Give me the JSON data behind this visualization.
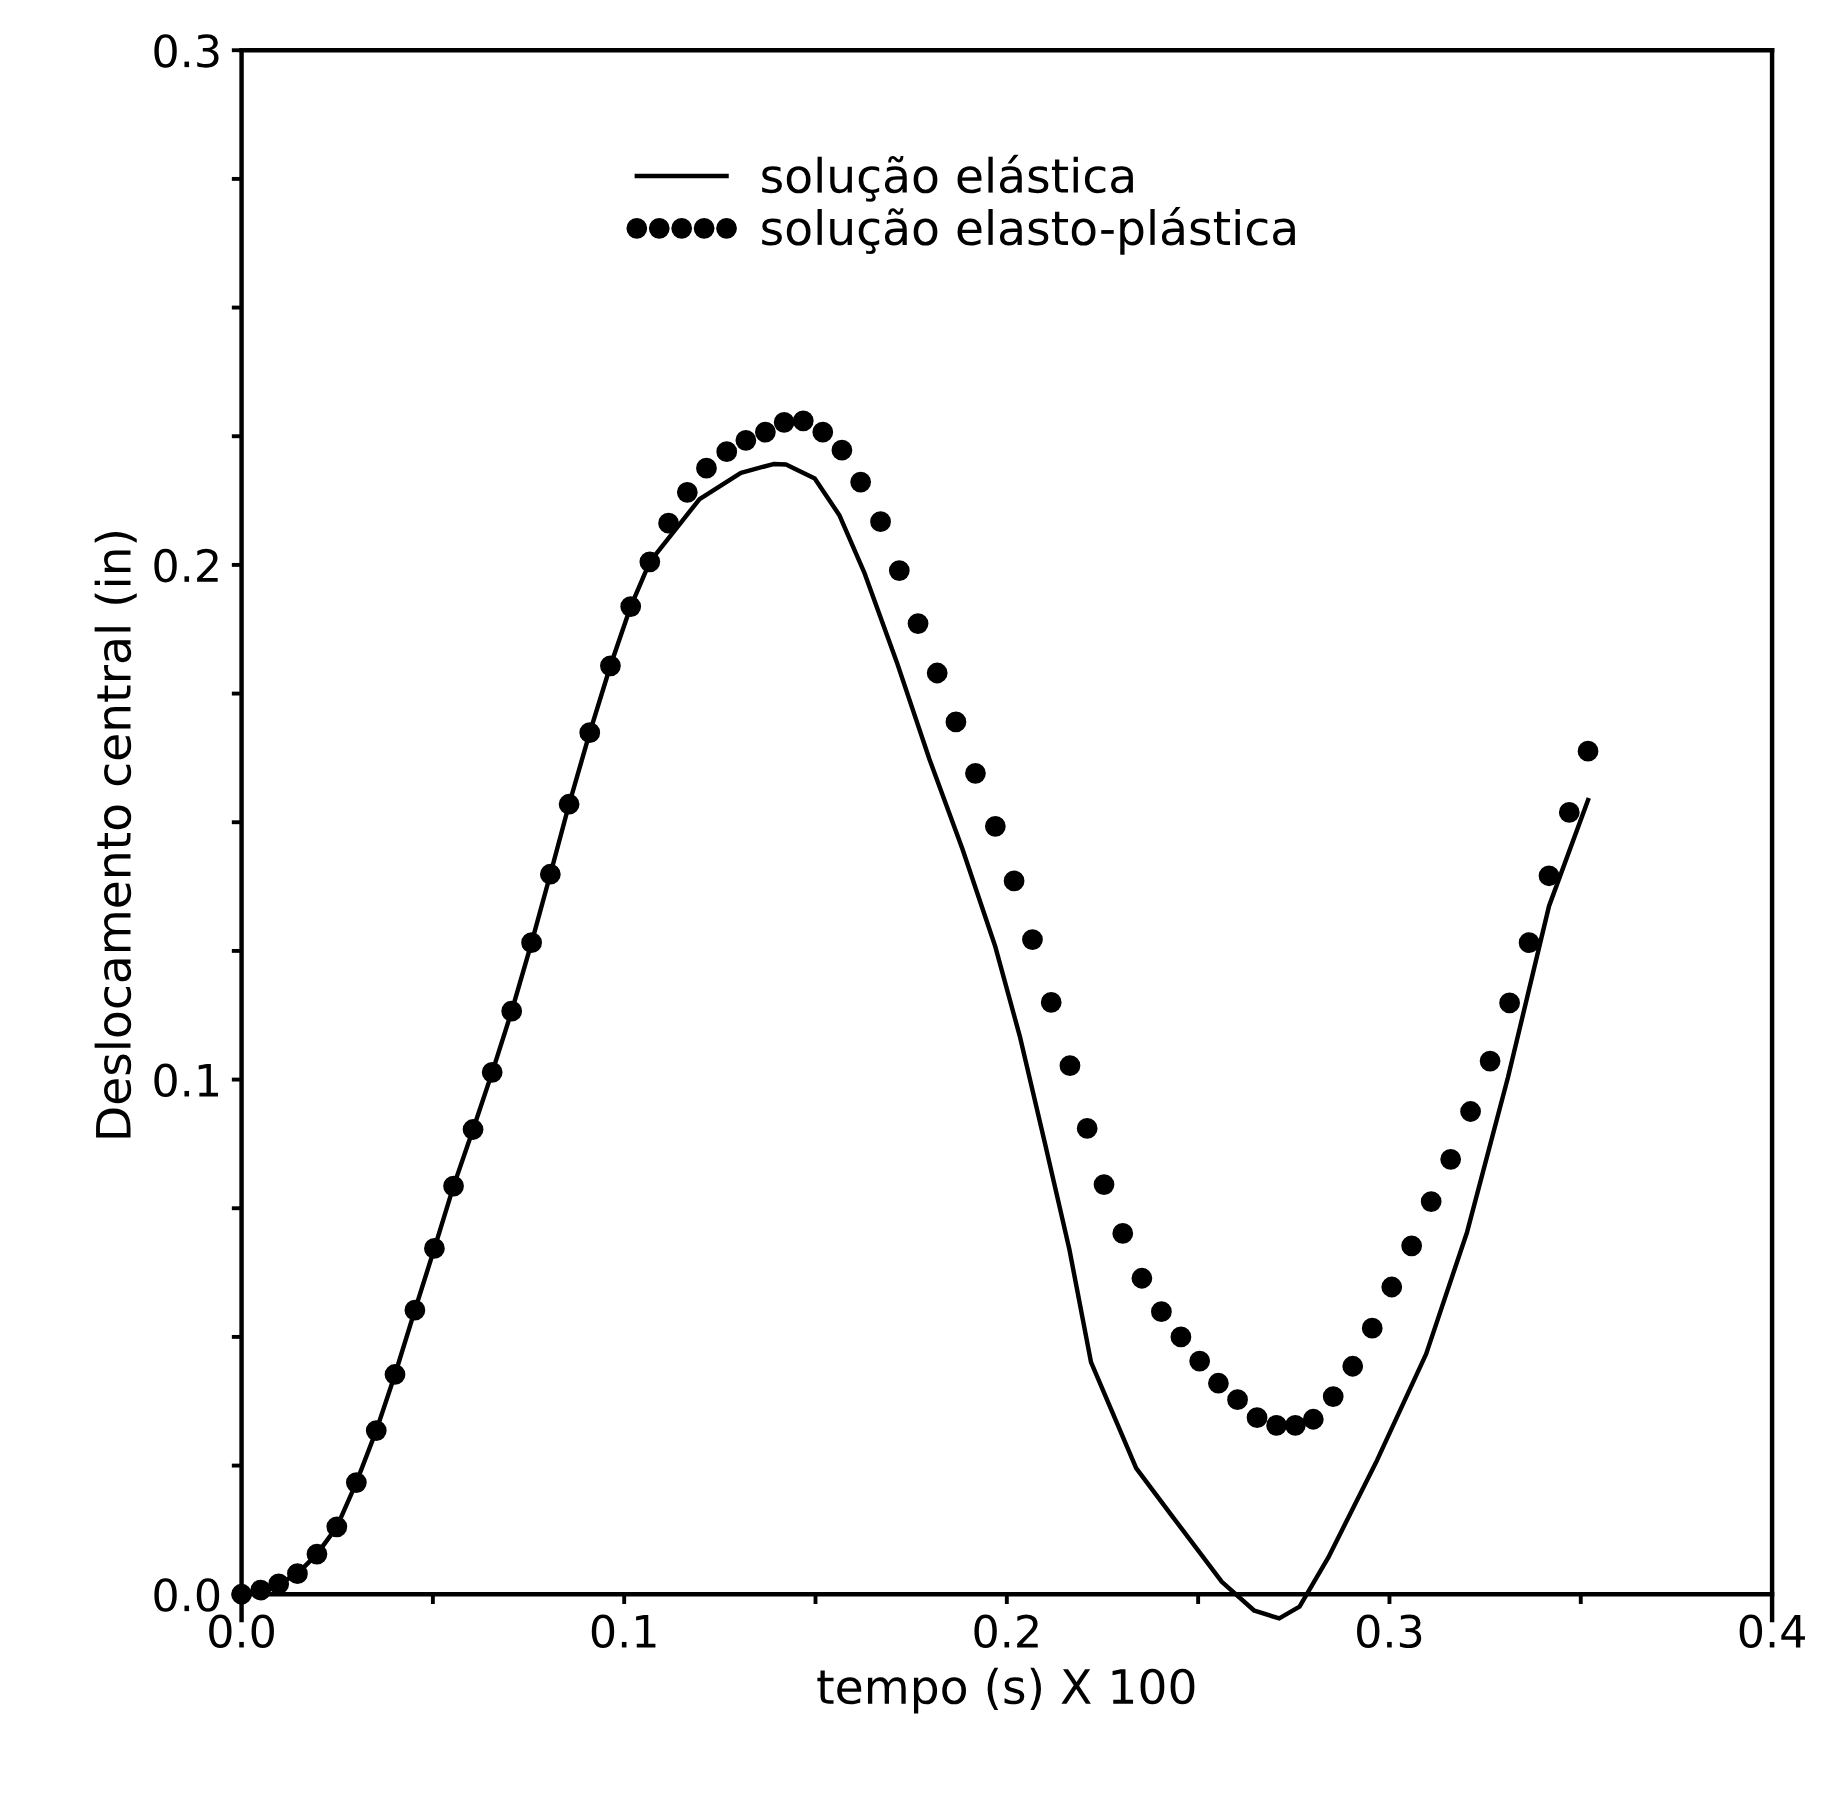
{
  "chart_data": {
    "type": "line",
    "xlabel": "tempo (s) X 100",
    "ylabel": "Deslocamento central (in)",
    "xlim": [
      0,
      0.4
    ],
    "ylim": [
      -0.005,
      0.3
    ],
    "xticks": [
      {
        "value": 0.0,
        "label": "0.0"
      },
      {
        "value": 0.05,
        "label": null
      },
      {
        "value": 0.1,
        "label": "0.1"
      },
      {
        "value": 0.15,
        "label": null
      },
      {
        "value": 0.2,
        "label": "0.2"
      },
      {
        "value": 0.25,
        "label": null
      },
      {
        "value": 0.3,
        "label": "0.3"
      },
      {
        "value": 0.35,
        "label": null
      },
      {
        "value": 0.4,
        "label": "0.4"
      }
    ],
    "yticks": [
      {
        "value": 0.0,
        "label": "0.0"
      },
      {
        "value": 0.025,
        "label": null
      },
      {
        "value": 0.05,
        "label": null
      },
      {
        "value": 0.075,
        "label": null
      },
      {
        "value": 0.1,
        "label": "0.1"
      },
      {
        "value": 0.125,
        "label": null
      },
      {
        "value": 0.15,
        "label": null
      },
      {
        "value": 0.175,
        "label": null
      },
      {
        "value": 0.2,
        "label": "0.2"
      },
      {
        "value": 0.225,
        "label": null
      },
      {
        "value": 0.25,
        "label": null
      },
      {
        "value": 0.275,
        "label": null
      },
      {
        "value": 0.3,
        "label": "0.3"
      }
    ],
    "grid": false,
    "legend": "top",
    "series": [
      {
        "name": "solução elástica",
        "color": "#000000",
        "line_style": "solid",
        "marker": "none",
        "x": [
          0,
          0.005,
          0.0097,
          0.0146,
          0.0197,
          0.0249,
          0.03,
          0.0352,
          0.0401,
          0.0453,
          0.0504,
          0.0554,
          0.0605,
          0.0655,
          0.0706,
          0.0758,
          0.0807,
          0.0856,
          0.091,
          0.0964,
          0.1017,
          0.1067,
          0.1197,
          0.1305,
          0.139,
          0.1423,
          0.1498,
          0.1562,
          0.1627,
          0.1712,
          0.1798,
          0.1884,
          0.197,
          0.2034,
          0.2099,
          0.2163,
          0.222,
          0.2338,
          0.2434,
          0.2562,
          0.2647,
          0.2712,
          0.2765,
          0.284,
          0.2968,
          0.3096,
          0.3203,
          0.331,
          0.3417,
          0.3519
        ],
        "values": [
          0,
          0.0008,
          0.002,
          0.004,
          0.0078,
          0.0131,
          0.0217,
          0.0318,
          0.0427,
          0.0552,
          0.0672,
          0.0793,
          0.0903,
          0.1014,
          0.1133,
          0.1266,
          0.1399,
          0.1535,
          0.1674,
          0.1804,
          0.1919,
          0.2006,
          0.2128,
          0.2179,
          0.2196,
          0.2195,
          0.2168,
          0.2097,
          0.1986,
          0.1812,
          0.1622,
          0.1448,
          0.1258,
          0.1084,
          0.0878,
          0.0672,
          0.0451,
          0.0245,
          0.015,
          0.0024,
          -0.0032,
          -0.0047,
          -0.0024,
          0.0071,
          0.0261,
          0.0467,
          0.0704,
          0.1005,
          0.1337,
          0.1543
        ]
      },
      {
        "name": "solução elasto-plástica",
        "type": "scatter",
        "color": "#000000",
        "marker": "circle",
        "x": [
          0,
          0.005,
          0.0097,
          0.0146,
          0.0197,
          0.0249,
          0.03,
          0.0352,
          0.0401,
          0.0453,
          0.0504,
          0.0554,
          0.0605,
          0.0655,
          0.0706,
          0.0758,
          0.0807,
          0.0856,
          0.091,
          0.0964,
          0.1017,
          0.1067,
          0.1116,
          0.1165,
          0.1215,
          0.1268,
          0.1318,
          0.1369,
          0.1418,
          0.1468,
          0.1519,
          0.1569,
          0.1618,
          0.167,
          0.1719,
          0.1768,
          0.1818,
          0.1867,
          0.1918,
          0.197,
          0.2019,
          0.2067,
          0.2116,
          0.2165,
          0.221,
          0.2254,
          0.2303,
          0.2353,
          0.2404,
          0.2455,
          0.2504,
          0.2553,
          0.2603,
          0.2654,
          0.2705,
          0.2754,
          0.2801,
          0.2853,
          0.2904,
          0.2955,
          0.3006,
          0.3058,
          0.3109,
          0.316,
          0.3212,
          0.3263,
          0.3314,
          0.3365,
          0.3417,
          0.347,
          0.3519
        ],
        "values": [
          0,
          0.0008,
          0.002,
          0.004,
          0.0078,
          0.0131,
          0.0217,
          0.0318,
          0.0427,
          0.0552,
          0.0672,
          0.0793,
          0.0903,
          0.1014,
          0.1133,
          0.1266,
          0.1399,
          0.1535,
          0.1674,
          0.1804,
          0.1919,
          0.2006,
          0.2081,
          0.2141,
          0.2188,
          0.222,
          0.2242,
          0.2258,
          0.2277,
          0.228,
          0.2258,
          0.2223,
          0.2161,
          0.2084,
          0.1989,
          0.1886,
          0.179,
          0.1695,
          0.1595,
          0.1492,
          0.1386,
          0.1272,
          0.115,
          0.1027,
          0.0905,
          0.0796,
          0.0701,
          0.0614,
          0.0549,
          0.05,
          0.0453,
          0.041,
          0.0378,
          0.0343,
          0.0328,
          0.0328,
          0.034,
          0.0384,
          0.0443,
          0.0517,
          0.0597,
          0.0677,
          0.0763,
          0.0845,
          0.0938,
          0.1036,
          0.1149,
          0.1266,
          0.1396,
          0.1519,
          0.1638
        ]
      }
    ]
  }
}
